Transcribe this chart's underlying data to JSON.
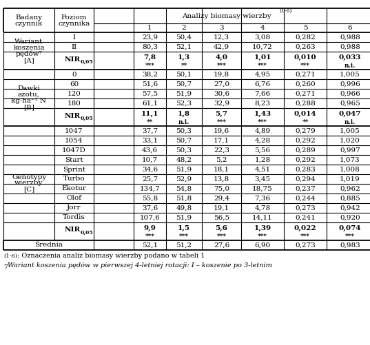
{
  "header_col1": [
    "Badany",
    "czynnik"
  ],
  "header_col2": [
    "Poziom",
    "czynnika"
  ],
  "header_span": "Analizy biomasy wierzby",
  "header_span_super": "(1-6)",
  "col_numbers": [
    "1",
    "2",
    "3",
    "4",
    "5",
    "6"
  ],
  "sections": [
    {
      "label": [
        "Wariant",
        "koszenia",
        "pędów⁷",
        "[A]"
      ],
      "rows": [
        {
          "level": "I",
          "vals": [
            "23,9",
            "50,4",
            "12,3",
            "3,08",
            "0,282",
            "0,988"
          ],
          "bold": false,
          "nir": false
        },
        {
          "level": "II",
          "vals": [
            "80,3",
            "52,1",
            "42,9",
            "10,72",
            "0,263",
            "0,988"
          ],
          "bold": false,
          "nir": false
        },
        {
          "level": "NIR",
          "vals": [
            "7,8",
            "***",
            "1,3",
            "**",
            "4,0",
            "***",
            "1,01",
            "***",
            "0,010",
            "***",
            "0,033",
            "n.i."
          ],
          "bold": true,
          "nir": true
        }
      ]
    },
    {
      "label": [
        "Dawki",
        "azotu,",
        "kg·ha⁻¹ N",
        "[B]"
      ],
      "rows": [
        {
          "level": "0",
          "vals": [
            "38,2",
            "50,1",
            "19,8",
            "4,95",
            "0,271",
            "1,005"
          ],
          "bold": false,
          "nir": false
        },
        {
          "level": "60",
          "vals": [
            "51,6",
            "50,7",
            "27,0",
            "6,76",
            "0,260",
            "0,996"
          ],
          "bold": false,
          "nir": false
        },
        {
          "level": "120",
          "vals": [
            "57,5",
            "51,9",
            "30,6",
            "7,66",
            "0,271",
            "0,966"
          ],
          "bold": false,
          "nir": false
        },
        {
          "level": "180",
          "vals": [
            "61,1",
            "52,3",
            "32,9",
            "8,23",
            "0,288",
            "0,965"
          ],
          "bold": false,
          "nir": false
        },
        {
          "level": "NIR",
          "vals": [
            "11,1",
            "**",
            "1,8",
            "n.i.",
            "5,7",
            "***",
            "1,43",
            "***",
            "0,014",
            "**",
            "0,047",
            "n.i."
          ],
          "bold": true,
          "nir": true
        }
      ]
    },
    {
      "label": [
        "Genotypy",
        "wierzby",
        "[C]"
      ],
      "rows": [
        {
          "level": "1047",
          "vals": [
            "37,7",
            "50,3",
            "19,6",
            "4,89",
            "0,279",
            "1,005"
          ],
          "bold": false,
          "nir": false
        },
        {
          "level": "1054",
          "vals": [
            "33,1",
            "50,7",
            "17,1",
            "4,28",
            "0,292",
            "1,020"
          ],
          "bold": false,
          "nir": false
        },
        {
          "level": "1047D",
          "vals": [
            "43,6",
            "50,3",
            "22,3",
            "5,56",
            "0,289",
            "0,997"
          ],
          "bold": false,
          "nir": false
        },
        {
          "level": "Start",
          "vals": [
            "10,7",
            "48,2",
            "5,2",
            "1,28",
            "0,292",
            "1,073"
          ],
          "bold": false,
          "nir": false
        },
        {
          "level": "Sprint",
          "vals": [
            "34,6",
            "51,9",
            "18,1",
            "4,51",
            "0,283",
            "1,008"
          ],
          "bold": false,
          "nir": false
        },
        {
          "level": "Turbo",
          "vals": [
            "25,7",
            "52,9",
            "13,8",
            "3,45",
            "0,294",
            "1,019"
          ],
          "bold": false,
          "nir": false
        },
        {
          "level": "Ekotur",
          "vals": [
            "134,7",
            "54,8",
            "75,0",
            "18,75",
            "0,237",
            "0,962"
          ],
          "bold": false,
          "nir": false
        },
        {
          "level": "Olof",
          "vals": [
            "55,8",
            "51,8",
            "29,4",
            "7,36",
            "0,244",
            "0,885"
          ],
          "bold": false,
          "nir": false
        },
        {
          "level": "Jorr",
          "vals": [
            "37,6",
            "49,8",
            "19,1",
            "4,78",
            "0,273",
            "0,942"
          ],
          "bold": false,
          "nir": false
        },
        {
          "level": "Tordis",
          "vals": [
            "107,6",
            "51,9",
            "56,5",
            "14,11",
            "0,241",
            "0,920"
          ],
          "bold": false,
          "nir": false
        },
        {
          "level": "NIR",
          "vals": [
            "9,9",
            "***",
            "1,5",
            "***",
            "5,6",
            "***",
            "1,39",
            "***",
            "0,022",
            "***",
            "0,074",
            "***"
          ],
          "bold": true,
          "nir": true
        }
      ]
    }
  ],
  "srednia_vals": [
    "52,1",
    "51,2",
    "27,6",
    "6,90",
    "0,273",
    "0,983"
  ],
  "footnote1_super": "(1-6)",
  "footnote1_text": ": Oznaczenia analiz biomasy wierzby podano w tabeli 1",
  "footnote2_super": "7",
  "footnote2_text": "Wariant koszenia pędów w pierwszej 4-letniej rotacji: I – koszenie po 3-letnim",
  "background": "#ffffff",
  "text_color": "#000000",
  "border_color": "#000000"
}
